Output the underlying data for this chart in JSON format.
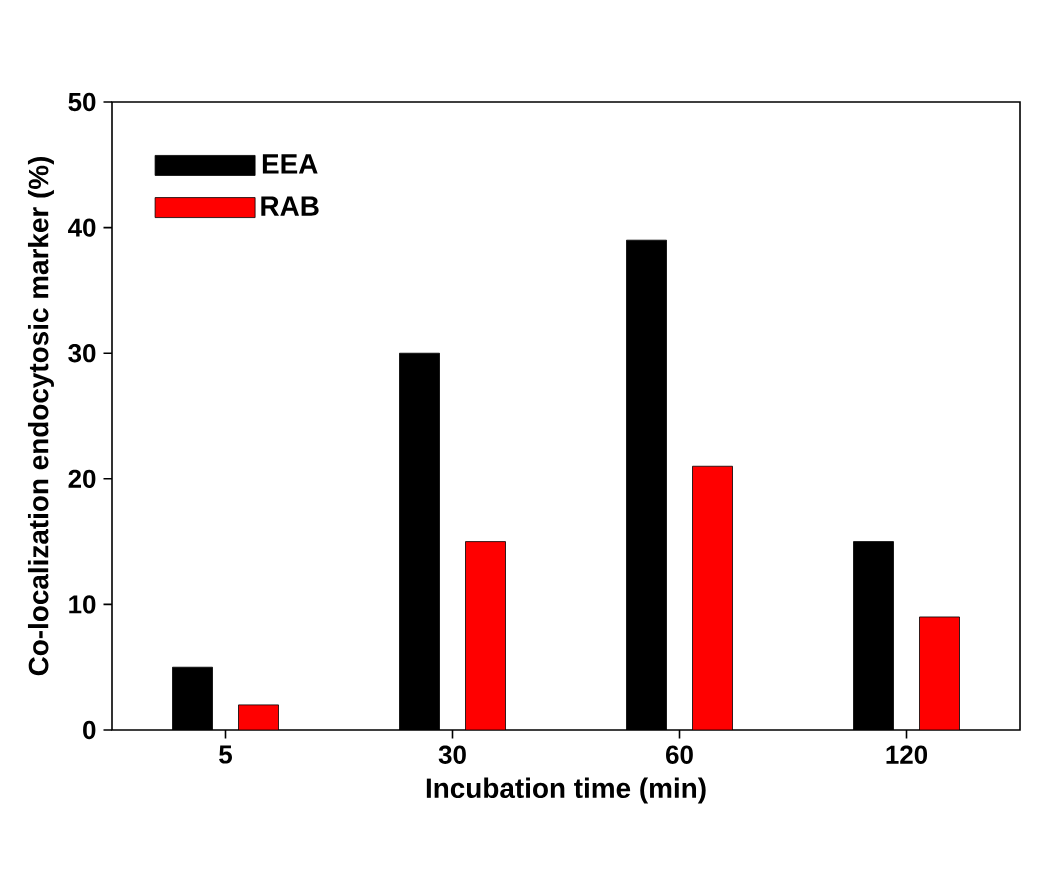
{
  "chart_data": {
    "type": "bar",
    "xlabel": "Incubation time (min)",
    "ylabel": "Co-localization endocytosic marker (%)",
    "categories": [
      "5",
      "30",
      "60",
      "120"
    ],
    "series": [
      {
        "name": "EEA",
        "color": "#000000",
        "values": [
          5,
          30,
          39,
          15
        ]
      },
      {
        "name": "RAB",
        "color": "#ff0000",
        "values": [
          2,
          15,
          21,
          9
        ]
      }
    ],
    "ylim": [
      0,
      50
    ],
    "yticks": [
      0,
      10,
      20,
      30,
      40,
      50
    ],
    "legend": "top left",
    "grid": false
  }
}
